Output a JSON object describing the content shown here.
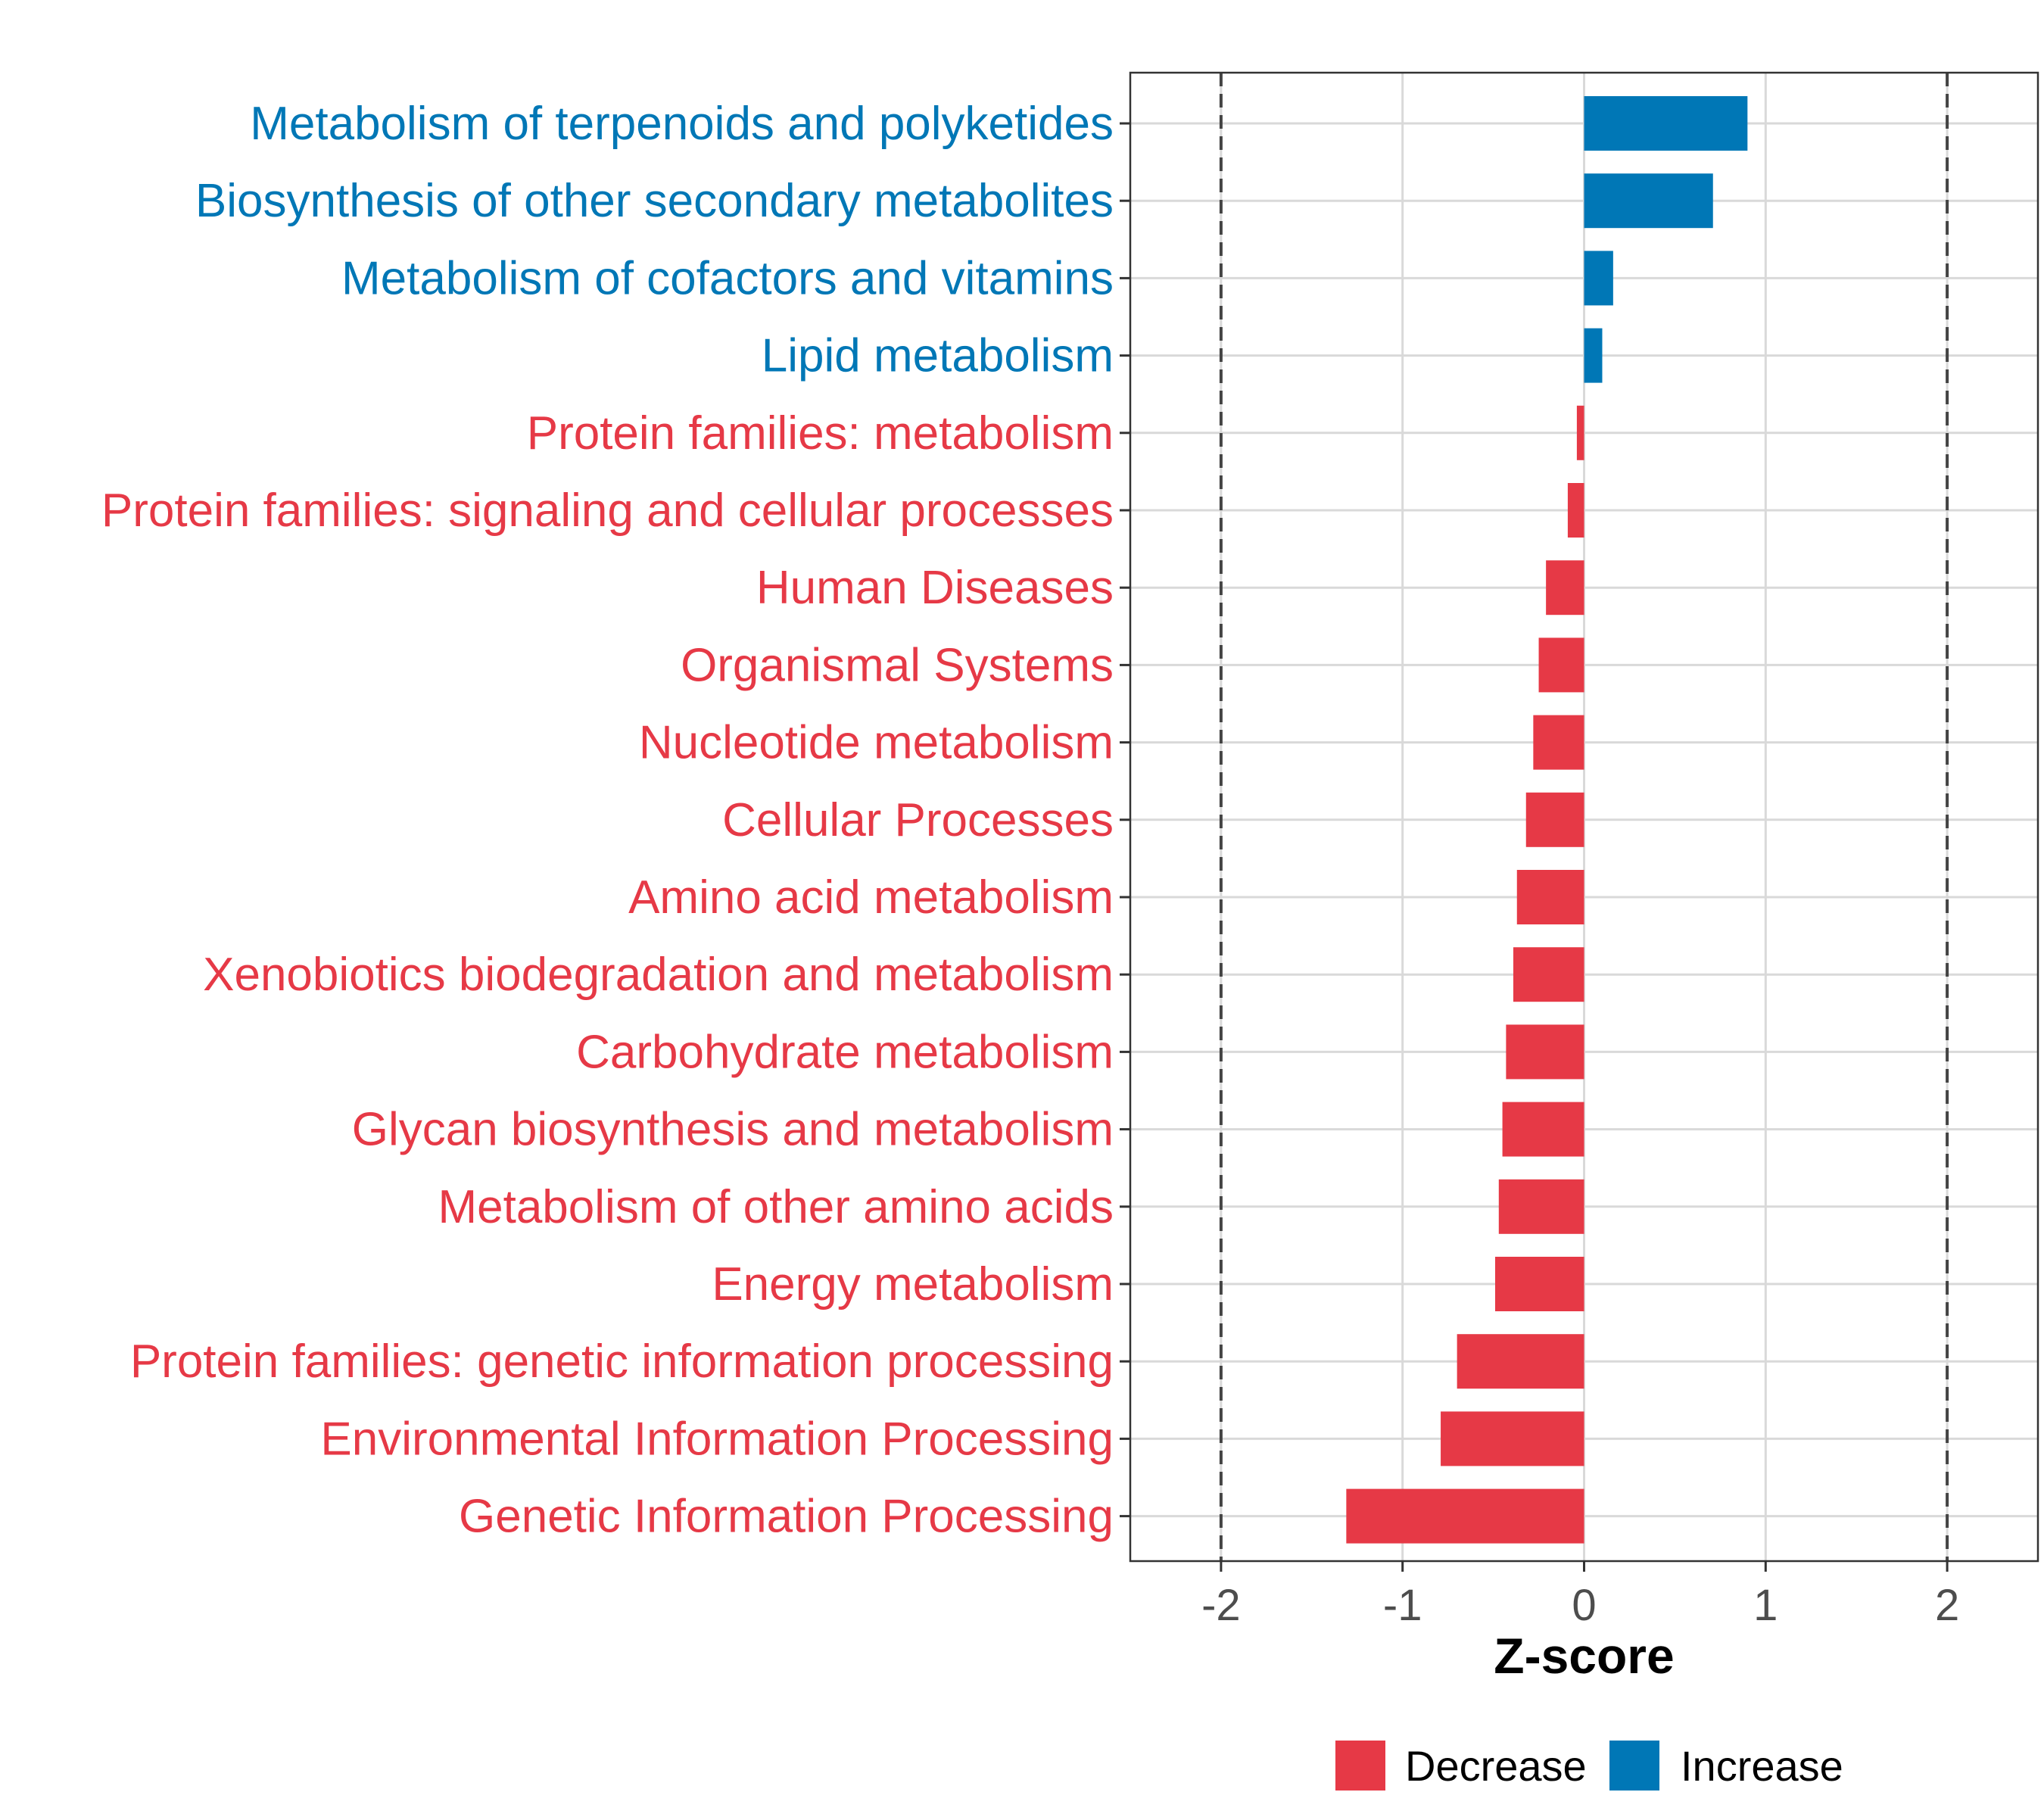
{
  "chart_data": {
    "type": "bar",
    "orientation": "horizontal",
    "title": "",
    "xlabel": "Z-score",
    "ylabel": "",
    "xlim": [
      -2.5,
      2.5
    ],
    "xticks": [
      -2,
      -1,
      0,
      1,
      2
    ],
    "xtick_labels": [
      "-2",
      "-1",
      "0",
      "1",
      "2"
    ],
    "reference_lines": [
      -2,
      2
    ],
    "grid": true,
    "legend_position": "bottom",
    "legend": [
      {
        "key": "decrease",
        "label": "Decrease",
        "color": "#e63946"
      },
      {
        "key": "increase",
        "label": "Increase",
        "color": "#0077b6"
      }
    ],
    "categories": [
      "Metabolism of terpenoids and polyketides",
      "Biosynthesis of other secondary metabolites",
      "Metabolism of cofactors and vitamins",
      "Lipid metabolism",
      "Protein families: metabolism",
      "Protein families: signaling and cellular processes",
      "Human Diseases",
      "Organismal Systems",
      "Nucleotide metabolism",
      "Cellular Processes",
      "Amino acid metabolism",
      "Xenobiotics biodegradation and metabolism",
      "Carbohydrate metabolism",
      "Glycan biosynthesis and metabolism",
      "Metabolism of other amino acids",
      "Energy metabolism",
      "Protein families: genetic information processing",
      "Environmental Information Processing",
      "Genetic Information Processing"
    ],
    "values": [
      0.9,
      0.71,
      0.16,
      0.1,
      -0.04,
      -0.09,
      -0.21,
      -0.25,
      -0.28,
      -0.32,
      -0.37,
      -0.39,
      -0.43,
      -0.45,
      -0.47,
      -0.49,
      -0.7,
      -0.79,
      -1.31
    ]
  }
}
